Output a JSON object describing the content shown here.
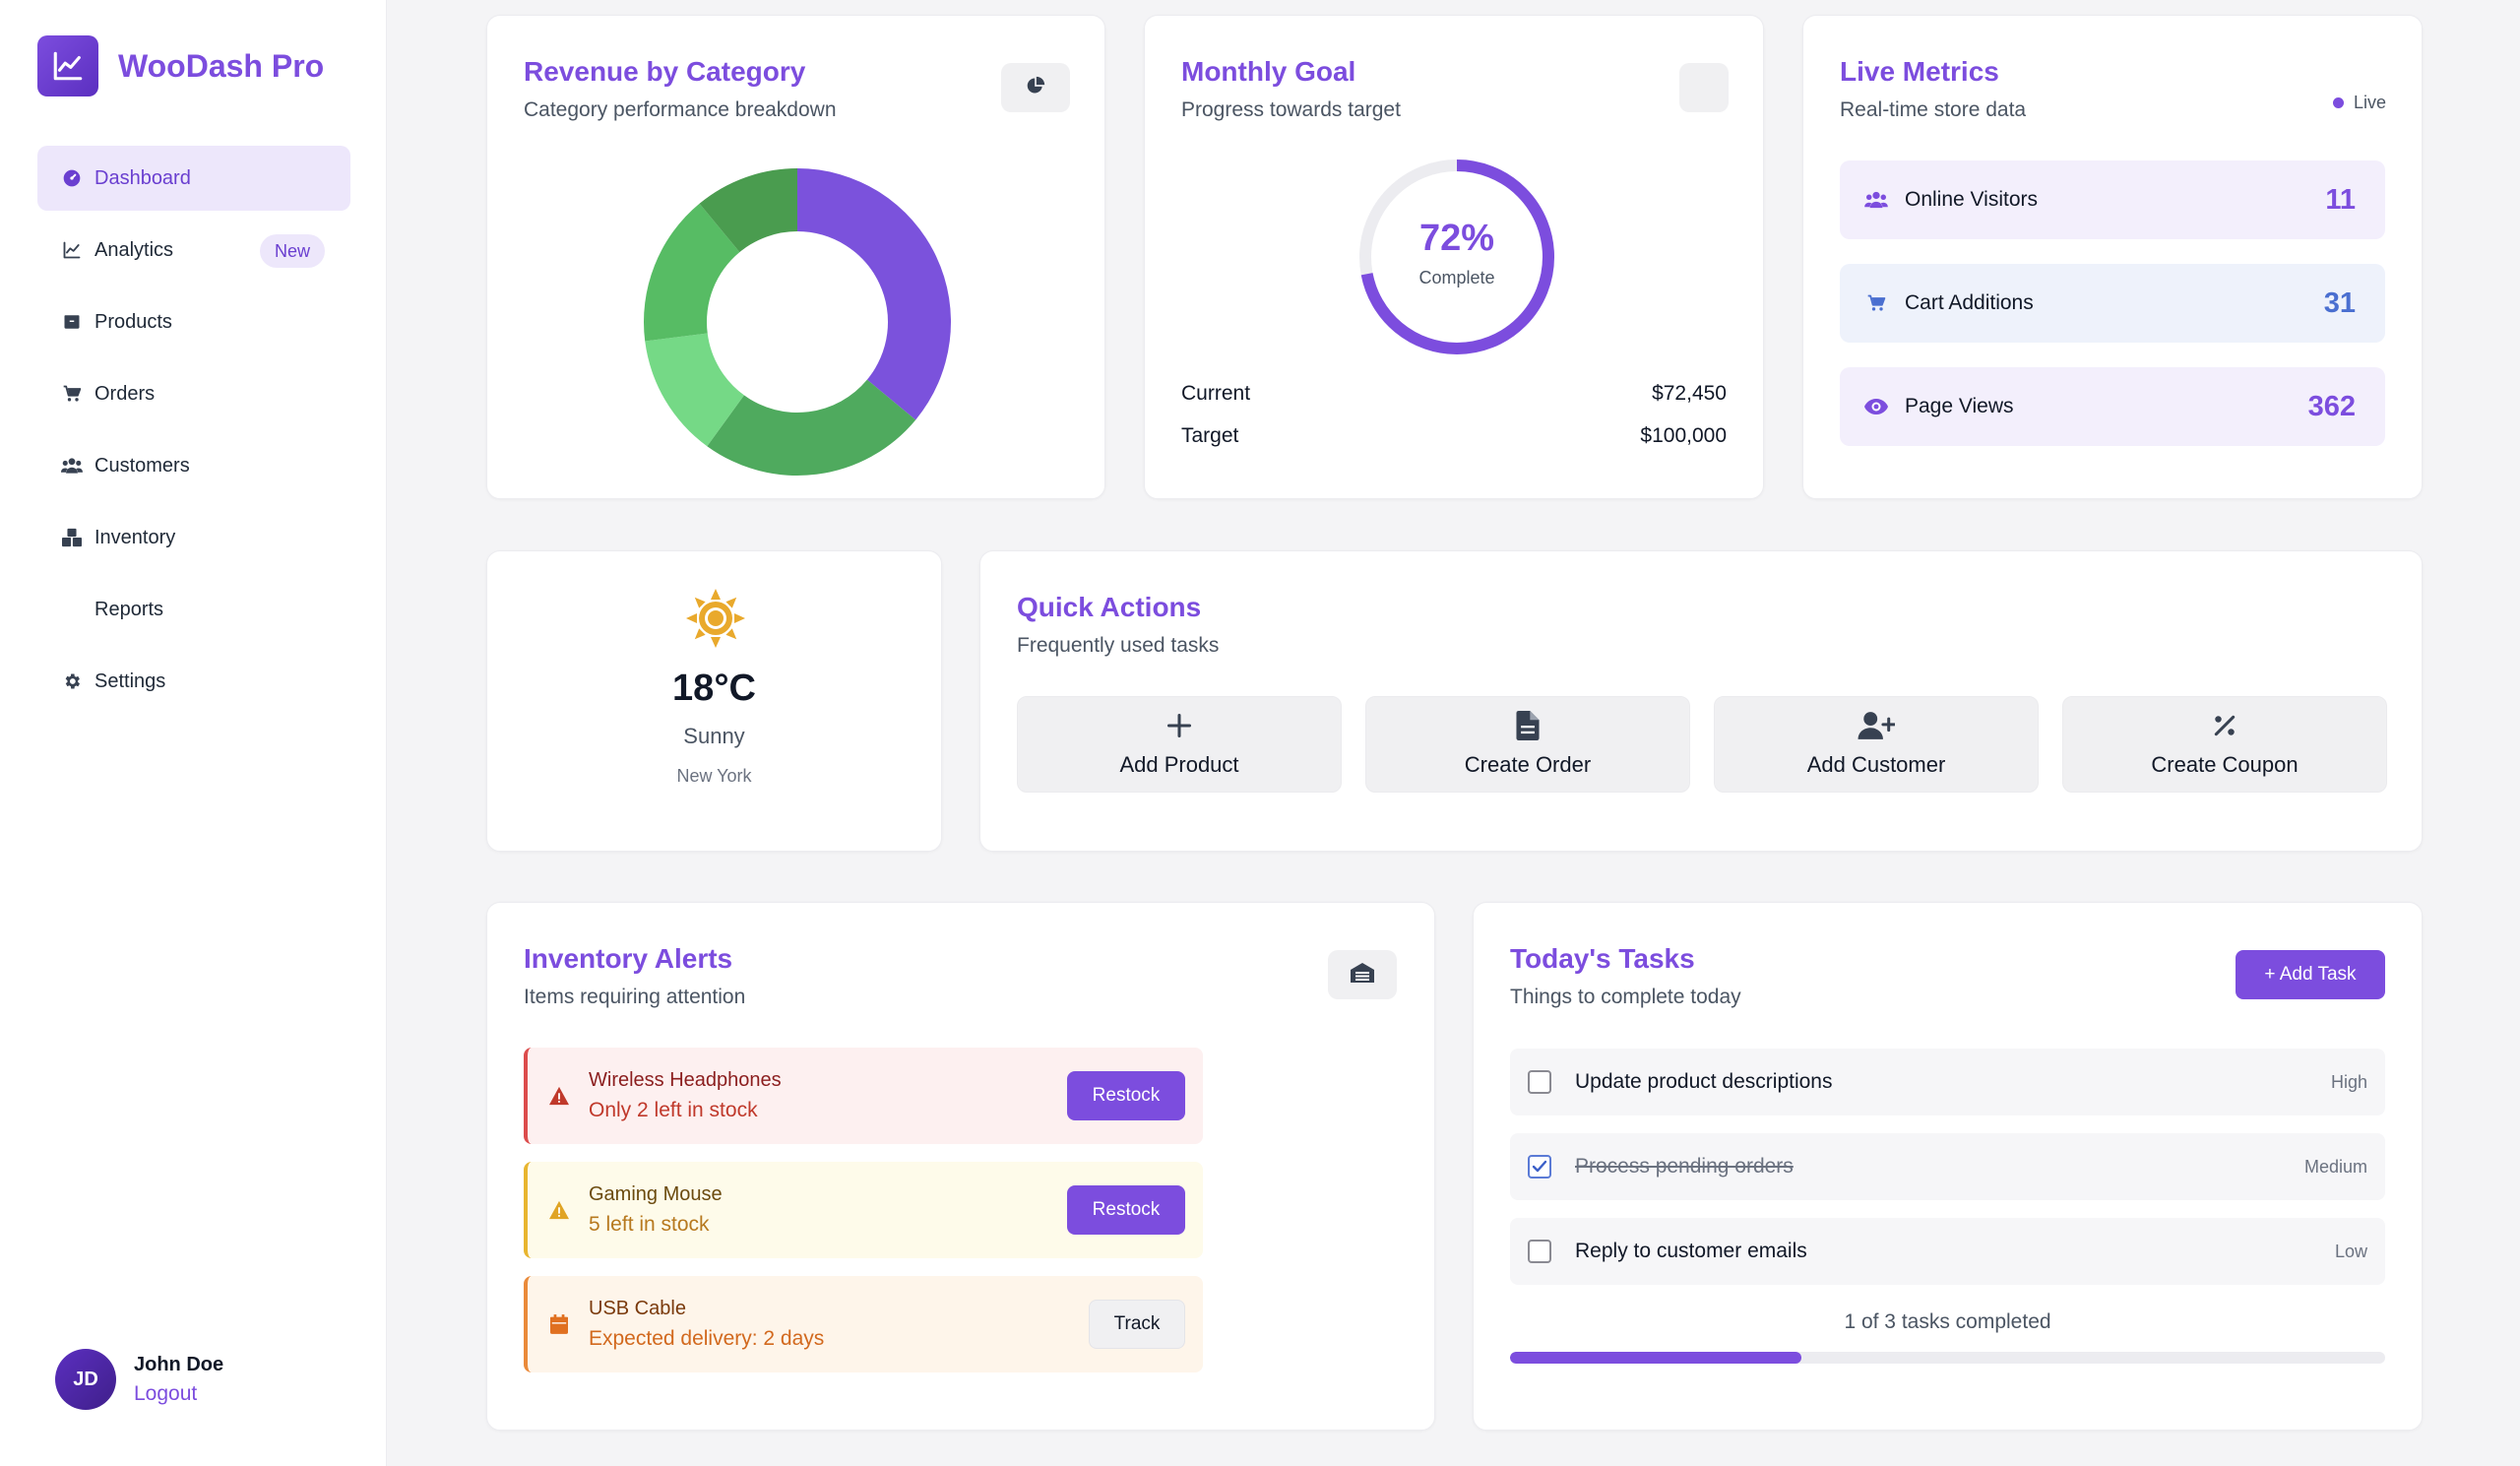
{
  "brand": {
    "name": "WooDash Pro"
  },
  "nav": [
    {
      "label": "Dashboard",
      "icon": "gauge-icon",
      "active": true
    },
    {
      "label": "Analytics",
      "icon": "chart-line-icon",
      "badge": "New"
    },
    {
      "label": "Products",
      "icon": "box-icon"
    },
    {
      "label": "Orders",
      "icon": "cart-icon"
    },
    {
      "label": "Customers",
      "icon": "users-icon"
    },
    {
      "label": "Inventory",
      "icon": "boxes-icon"
    },
    {
      "label": "Reports",
      "icon": ""
    },
    {
      "label": "Settings",
      "icon": "gear-icon"
    }
  ],
  "user": {
    "initials": "JD",
    "name": "John Doe",
    "logout": "Logout"
  },
  "revenue": {
    "title": "Revenue by Category",
    "subtitle": "Category performance breakdown",
    "icon": "pie-chart-icon"
  },
  "chart_data": {
    "type": "pie",
    "title": "Revenue by Category",
    "subtitle": "Category performance breakdown",
    "values": [
      36,
      24,
      13,
      16,
      11
    ],
    "colors": [
      "#7b52dc",
      "#4faa5e",
      "#75d986",
      "#57bc64",
      "#4a9c4f"
    ],
    "donut": true
  },
  "goal": {
    "title": "Monthly Goal",
    "subtitle": "Progress towards target",
    "percent_label": "72%",
    "percent": 72,
    "complete_label": "Complete",
    "current_label": "Current",
    "current_value": "$72,450",
    "target_label": "Target",
    "target_value": "$100,000"
  },
  "live": {
    "title": "Live Metrics",
    "subtitle": "Real-time store data",
    "indicator": "Live",
    "metrics": [
      {
        "label": "Online Visitors",
        "value": "11",
        "icon": "users-icon",
        "bg": "#f3effc",
        "color": "#7c4dde"
      },
      {
        "label": "Cart Additions",
        "value": "31",
        "icon": "cart-icon",
        "bg": "#eef2fb",
        "color": "#4a6fd0"
      },
      {
        "label": "Page Views",
        "value": "362",
        "icon": "eye-icon",
        "bg": "#f3effc",
        "color": "#7c4dde"
      }
    ]
  },
  "weather": {
    "temp": "18°C",
    "condition": "Sunny",
    "location": "New York",
    "icon": "sun-icon"
  },
  "quick": {
    "title": "Quick Actions",
    "subtitle": "Frequently used tasks",
    "actions": [
      {
        "label": "Add Product",
        "icon": "plus-icon"
      },
      {
        "label": "Create Order",
        "icon": "file-icon"
      },
      {
        "label": "Add Customer",
        "icon": "user-plus-icon"
      },
      {
        "label": "Create Coupon",
        "icon": "percent-icon"
      }
    ]
  },
  "inventory": {
    "title": "Inventory Alerts",
    "subtitle": "Items requiring attention",
    "icon": "warehouse-icon",
    "alerts": [
      {
        "name": "Wireless Headphones",
        "desc": "Only 2 left in stock",
        "action": "Restock",
        "icon": "warning-icon",
        "bg": "#fdf0f0",
        "border": "#dc4c4c",
        "name_color": "#8b1e1e",
        "desc_color": "#c0392b"
      },
      {
        "name": "Gaming Mouse",
        "desc": "5 left in stock",
        "action": "Restock",
        "icon": "warning-icon",
        "bg": "#fefbea",
        "border": "#e8b530",
        "name_color": "#6b4a0e",
        "desc_color": "#b7791f"
      },
      {
        "name": "USB Cable",
        "desc": "Expected delivery: 2 days",
        "action": "Track",
        "icon": "calendar-icon",
        "bg": "#fef5ea",
        "border": "#ea8a3a",
        "name_color": "#7a3a0c",
        "desc_color": "#d2691e"
      }
    ]
  },
  "tasks": {
    "title": "Today's Tasks",
    "subtitle": "Things to complete today",
    "add_label": "+ Add Task",
    "items": [
      {
        "label": "Update product descriptions",
        "priority": "High",
        "done": false
      },
      {
        "label": "Process pending orders",
        "priority": "Medium",
        "done": true
      },
      {
        "label": "Reply to customer emails",
        "priority": "Low",
        "done": false
      }
    ],
    "summary": "1 of 3 tasks completed",
    "progress": 0.333
  }
}
